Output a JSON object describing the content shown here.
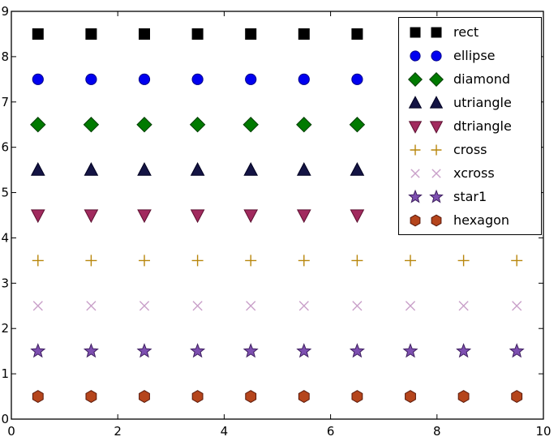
{
  "figure": {
    "background": "#ffffff",
    "frame_color": "#000000"
  },
  "chart_data": {
    "type": "scatter",
    "title": "",
    "xlabel": "",
    "ylabel": "",
    "xlim": [
      0,
      10
    ],
    "ylim": [
      0,
      9
    ],
    "xticks": [
      0,
      2,
      4,
      6,
      8,
      10
    ],
    "xtick_labels": [
      "0",
      "2",
      "4",
      "6",
      "8",
      "10"
    ],
    "yticks": [
      0,
      1,
      2,
      3,
      4,
      5,
      6,
      7,
      8,
      9
    ],
    "ytick_labels": [
      "0",
      "1",
      "2",
      "3",
      "4",
      "5",
      "6",
      "7",
      "8",
      "9"
    ],
    "grid": false,
    "legend_position": "upper right",
    "legend_numpoints": 2,
    "x": [
      0.5,
      1.5,
      2.5,
      3.5,
      4.5,
      5.5,
      6.5,
      7.5,
      8.5,
      9.5
    ],
    "series": [
      {
        "name": "rect",
        "marker": "square",
        "color": "#000000",
        "edge": "#000000",
        "y": 8.5
      },
      {
        "name": "ellipse",
        "marker": "circle",
        "color": "#0000f0",
        "edge": "#00008b",
        "y": 7.5
      },
      {
        "name": "diamond",
        "marker": "diamond",
        "color": "#007a00",
        "edge": "#003c00",
        "y": 6.5
      },
      {
        "name": "utriangle",
        "marker": "triangle-up",
        "color": "#141444",
        "edge": "#000020",
        "y": 5.5
      },
      {
        "name": "dtriangle",
        "marker": "triangle-down",
        "color": "#a12a5e",
        "edge": "#5c1030",
        "y": 4.5
      },
      {
        "name": "cross",
        "marker": "plus",
        "color": "#b8860b",
        "edge": "#b8860b",
        "y": 3.5
      },
      {
        "name": "xcross",
        "marker": "x",
        "color": "#c9a0c9",
        "edge": "#c9a0c9",
        "y": 2.5
      },
      {
        "name": "star1",
        "marker": "star",
        "color": "#7d4fb0",
        "edge": "#3f2060",
        "y": 1.5
      },
      {
        "name": "hexagon",
        "marker": "hexagon",
        "color": "#b5451c",
        "edge": "#58180a",
        "y": 0.5
      }
    ]
  }
}
